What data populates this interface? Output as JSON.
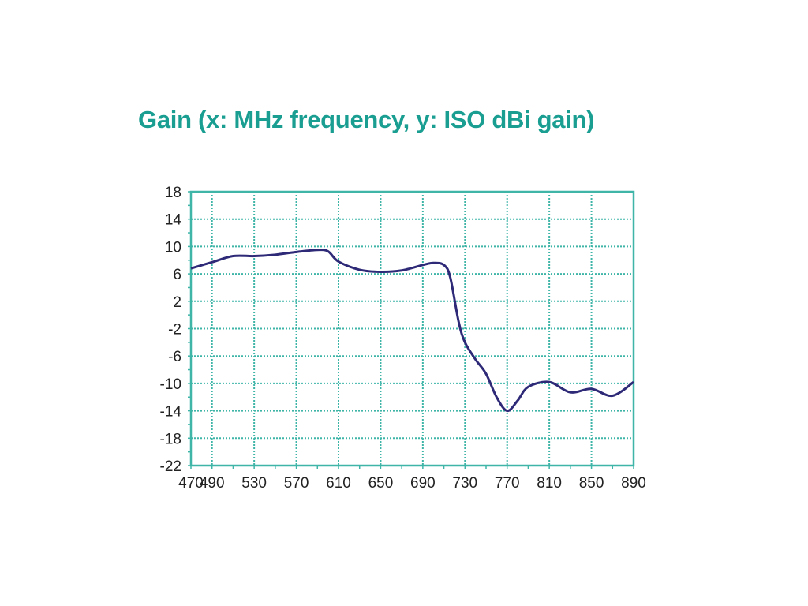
{
  "chart_data": {
    "type": "line",
    "title": "Gain (x: MHz frequency, y: ISO dBi gain)",
    "xlabel": "MHz frequency",
    "ylabel": "ISO dBi gain",
    "xlim": [
      470,
      890
    ],
    "ylim": [
      -22,
      18
    ],
    "x_ticks": [
      470,
      490,
      530,
      570,
      610,
      650,
      690,
      730,
      770,
      810,
      850,
      890
    ],
    "y_ticks": [
      18,
      14,
      10,
      6,
      2,
      -2,
      -6,
      -10,
      -14,
      -18,
      -22
    ],
    "grid": true,
    "colors": {
      "line": "#2f2a78",
      "grid": "#3fb5a8",
      "title": "#1a9e92"
    },
    "series": [
      {
        "name": "Gain",
        "x": [
          470,
          490,
          510,
          530,
          550,
          570,
          590,
          600,
          610,
          630,
          650,
          670,
          690,
          700,
          710,
          716,
          724,
          730,
          740,
          750,
          760,
          770,
          780,
          790,
          810,
          830,
          850,
          870,
          890
        ],
        "y": [
          6.8,
          7.7,
          8.6,
          8.6,
          8.8,
          9.2,
          9.5,
          9.3,
          7.8,
          6.6,
          6.3,
          6.5,
          7.3,
          7.6,
          7.3,
          5.5,
          -1,
          -4,
          -6.5,
          -8.6,
          -12,
          -14,
          -12.5,
          -10.5,
          -9.8,
          -11.3,
          -10.8,
          -11.8,
          -9.8
        ]
      }
    ]
  }
}
